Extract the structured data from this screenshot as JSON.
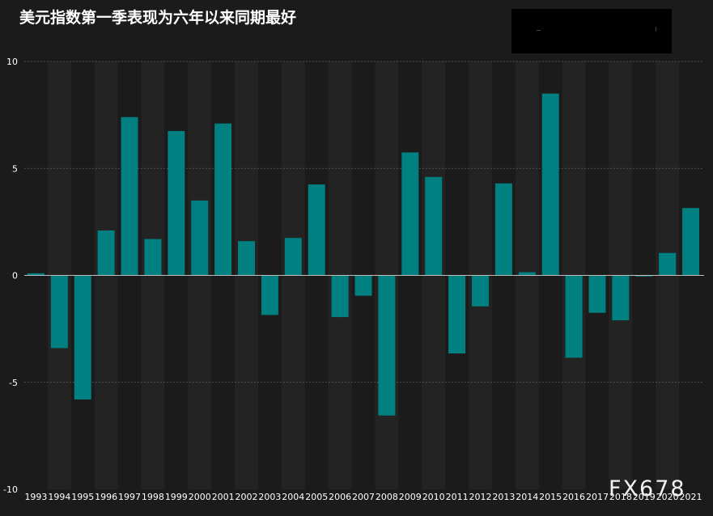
{
  "chart_data": {
    "type": "bar",
    "title": "美元指数第一季表现为六年以来同期最好",
    "xlabel": "",
    "ylabel": "",
    "ylim": [
      -10,
      10
    ],
    "yticks": [
      10,
      5,
      0,
      -5,
      -10
    ],
    "grid": "horizontal-dotted",
    "legend": "none",
    "categories": [
      "1993",
      "1994",
      "1995",
      "1996",
      "1997",
      "1998",
      "1999",
      "2000",
      "2001",
      "2002",
      "2003",
      "2004",
      "2005",
      "2006",
      "2007",
      "2008",
      "2009",
      "2010",
      "2011",
      "2012",
      "2013",
      "2014",
      "2015",
      "2016",
      "2017",
      "2018",
      "2019",
      "2020",
      "2021"
    ],
    "values": [
      0.1,
      -3.4,
      -5.8,
      2.1,
      7.4,
      1.7,
      6.75,
      3.5,
      7.1,
      1.6,
      -1.85,
      1.75,
      4.25,
      -1.95,
      -0.95,
      -6.55,
      5.75,
      4.6,
      -3.65,
      -1.45,
      4.3,
      0.15,
      8.5,
      -3.85,
      -1.75,
      -2.1,
      -0.05,
      1.05,
      3.15
    ],
    "colors": {
      "background": "#1b1b1b",
      "band_alt": "#232323",
      "bar": "#008080",
      "grid": "#777777",
      "zero_line": "#bfbfbf",
      "text": "#ffffff"
    }
  },
  "watermark": "FX678"
}
